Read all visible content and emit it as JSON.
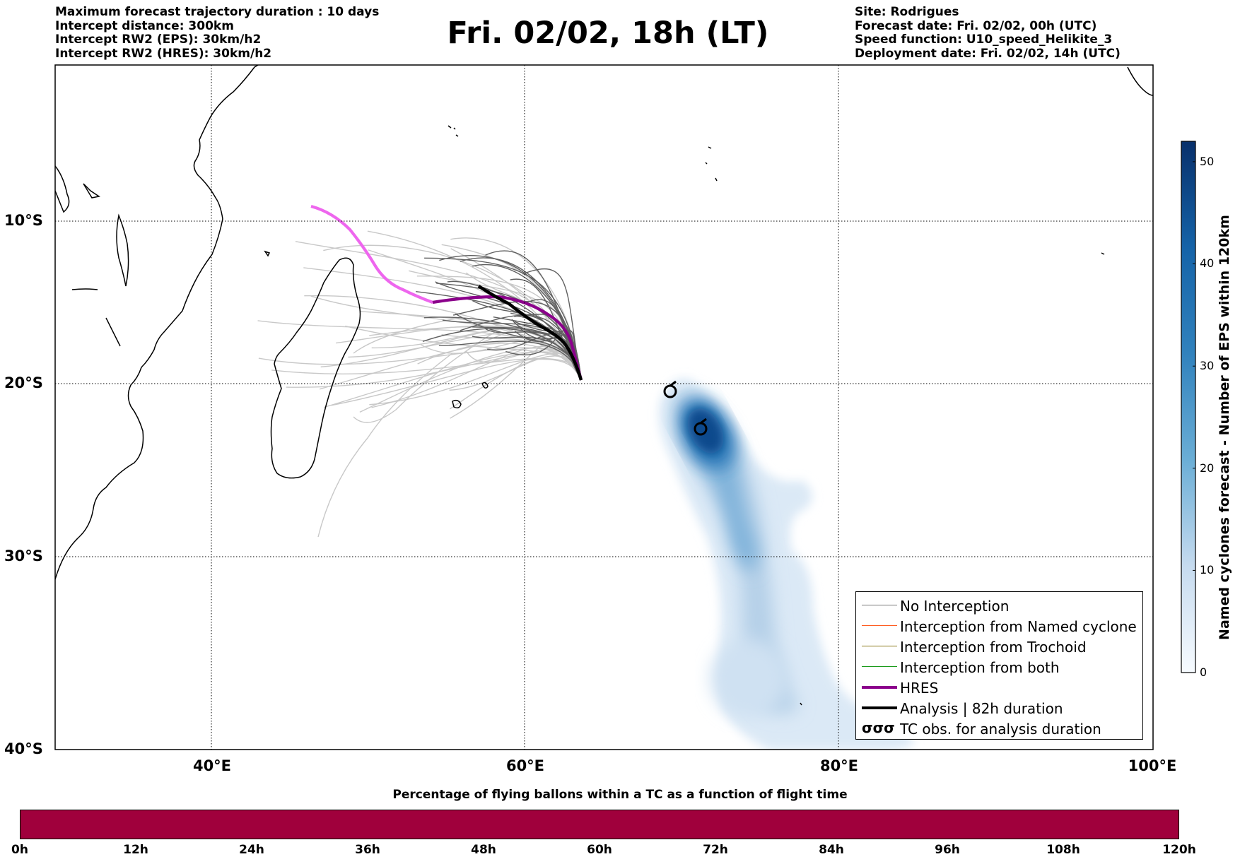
{
  "header_left": [
    "Maximum forecast trajectory duration : 10 days",
    "Intercept distance: 300km",
    "Intercept RW2 (EPS):  30km/h2",
    "Intercept RW2 (HRES): 30km/h2"
  ],
  "header_right": [
    "Site: Rodrigues",
    "Forecast date: Fri. 02/02, 00h (UTC)",
    "Speed function: U10_speed_Helikite_3",
    "Deployment date: Fri. 02/02, 14h (UTC)"
  ],
  "title": "Fri. 02/02, 18h (LT)",
  "map": {
    "lon_labels": [
      "40°E",
      "60°E",
      "80°E",
      "100°E"
    ],
    "lat_labels": [
      "10°S",
      "20°S",
      "30°S",
      "40°S"
    ],
    "lon_range": [
      30,
      100
    ],
    "lat_range": [
      -40,
      -0.3
    ],
    "gridlines": "dotted"
  },
  "colorbar": {
    "label": "Named cyclones forecast - Number of EPS within 120km",
    "ticks": [
      "0",
      "10",
      "20",
      "30",
      "40",
      "50"
    ],
    "range": [
      0,
      52
    ],
    "colormap": "Blues"
  },
  "legend": {
    "items": [
      {
        "label": "No Interception",
        "color": "#777777",
        "width": 1.5
      },
      {
        "label": "Interception from Named cyclone",
        "color": "#ff5a1e",
        "width": 1.5
      },
      {
        "label": "Interception from Trochoid",
        "color": "#8a7a1a",
        "width": 1.5
      },
      {
        "label": "Interception from both",
        "color": "#1a9a1a",
        "width": 1.5
      },
      {
        "label": "HRES",
        "color": "#8b008b",
        "width": 4
      },
      {
        "label": "Analysis | 82h duration",
        "color": "#000000",
        "width": 4
      }
    ],
    "tc_obs_label": "TC obs. for analysis duration",
    "tc_obs_symbol": "σσσ"
  },
  "bottom": {
    "title": "Percentage of flying ballons within a TC as a function of flight time",
    "bar_color": "#a0003c",
    "time_labels": [
      "0h",
      "12h",
      "24h",
      "36h",
      "48h",
      "60h",
      "72h",
      "84h",
      "96h",
      "108h",
      "120h"
    ]
  }
}
